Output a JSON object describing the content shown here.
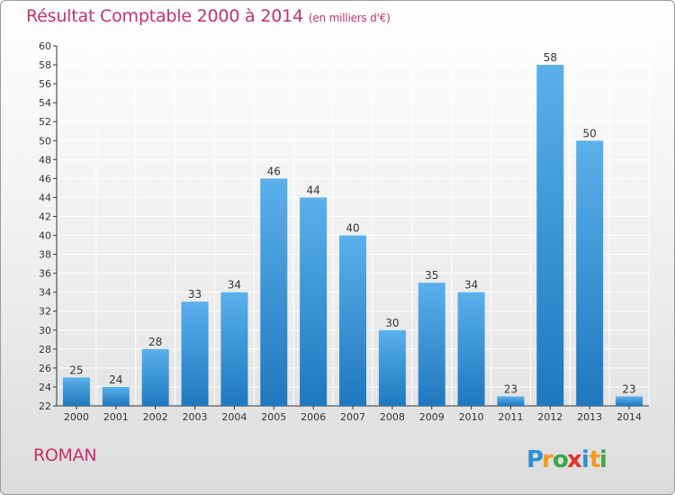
{
  "title": "Résultat Comptable 2000 à 2014",
  "unit": "(en milliers d'€)",
  "commune": "ROMAN",
  "brand": {
    "letters": [
      "P",
      "r",
      "o",
      "x",
      "i",
      "t",
      "i"
    ],
    "colors": [
      "#2f8ed4",
      "#f29a1e",
      "#3aa84a",
      "#e2322d",
      "#2f8ed4",
      "#f29a1e",
      "#3aa84a"
    ]
  },
  "colors": {
    "bar_light": "#5ab0ea",
    "bar_dark": "#1f78bf",
    "title": "#c7306b",
    "grid": "#ffffff"
  },
  "chart_data": {
    "type": "bar",
    "categories": [
      "2000",
      "2001",
      "2002",
      "2003",
      "2004",
      "2005",
      "2006",
      "2007",
      "2008",
      "2009",
      "2010",
      "2011",
      "2012",
      "2013",
      "2014"
    ],
    "values": [
      25,
      24,
      28,
      33,
      34,
      46,
      44,
      40,
      30,
      35,
      34,
      23,
      58,
      50,
      23
    ],
    "ylim": [
      22,
      60
    ],
    "yticks": [
      22,
      24,
      26,
      28,
      30,
      32,
      34,
      36,
      38,
      40,
      42,
      44,
      46,
      48,
      50,
      52,
      54,
      56,
      58,
      60
    ],
    "grid": true
  }
}
